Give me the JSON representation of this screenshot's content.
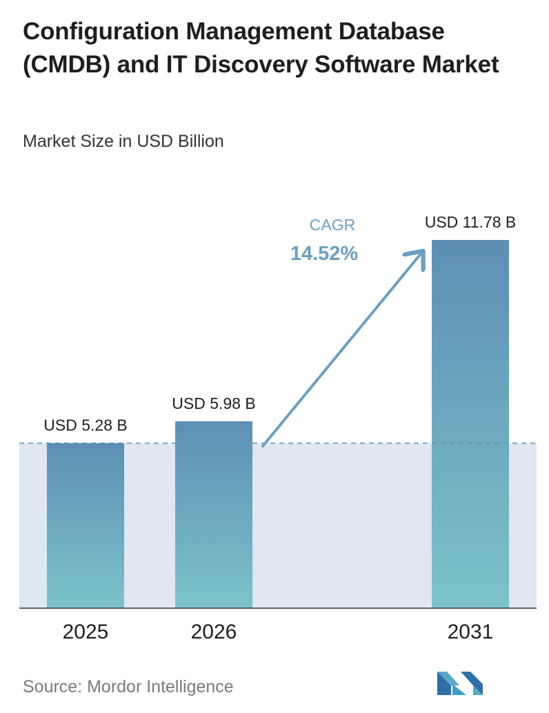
{
  "page": {
    "title": "Configuration Management Database (CMDB) and IT Discovery Software Market",
    "subtitle": "Market Size in USD Billion",
    "source": "Source: Mordor Intelligence"
  },
  "chart_data": {
    "type": "bar",
    "title": "Configuration Management Database (CMDB) and IT Discovery Software Market",
    "subtitle": "Market Size in USD Billion",
    "xlabel": "",
    "ylabel": "",
    "categories": [
      "2025",
      "2026",
      "2031"
    ],
    "values": [
      5.28,
      5.98,
      11.78
    ],
    "data_labels": [
      "USD 5.28 B",
      "USD 5.98 B",
      "USD 11.78 B"
    ],
    "ylim": [
      0,
      12.5
    ],
    "grid": false,
    "legend": "none",
    "annotations": {
      "cagr_label": "CAGR",
      "cagr_value": "14.52%"
    },
    "colors": {
      "bar_top": "#5d8fb5",
      "bar_bottom": "#7cc3c9",
      "shade": "#dfe7f0",
      "reference_line": "#5b8fb3",
      "arrow": "#6a9fc2",
      "cagr_text": "#6a9fc2"
    }
  }
}
